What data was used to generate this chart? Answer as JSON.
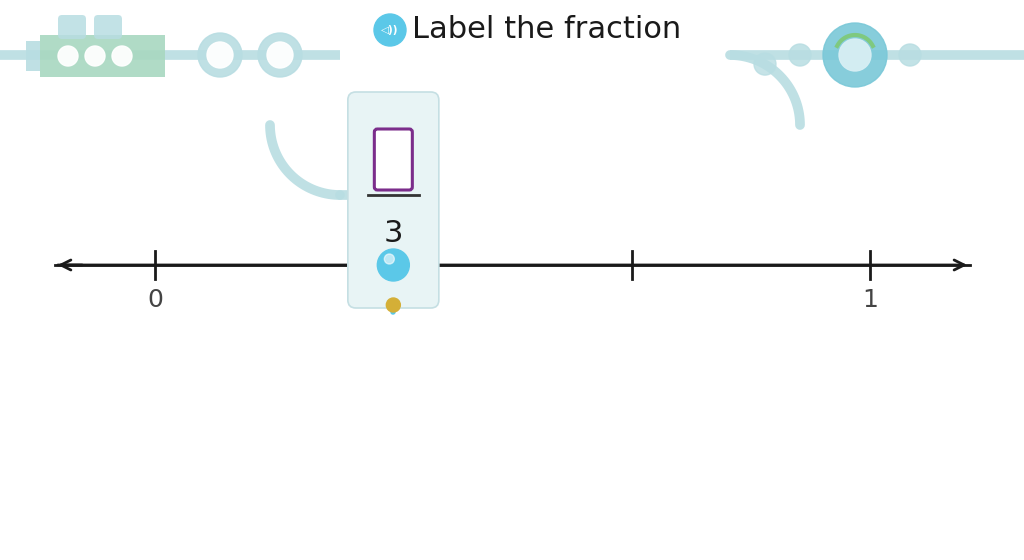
{
  "title": "Label the fraction",
  "title_fontsize": 22,
  "background_color": "#ffffff",
  "line_color": "#1a1a1a",
  "marker_color": "#5BC8E8",
  "label_0": "0",
  "label_1": "1",
  "card_bg_color": "#e8f4f5",
  "card_border_color": "#c5dfe3",
  "fraction_box_color": "#7B2D8B",
  "denominator": "3",
  "connector_color": "#5BC8E8",
  "connector_gold_color": "#D4AF37",
  "icon_circle_color": "#5BC8E8",
  "dec_color": "#b8dde2",
  "dec_green": "#a8d8b0"
}
